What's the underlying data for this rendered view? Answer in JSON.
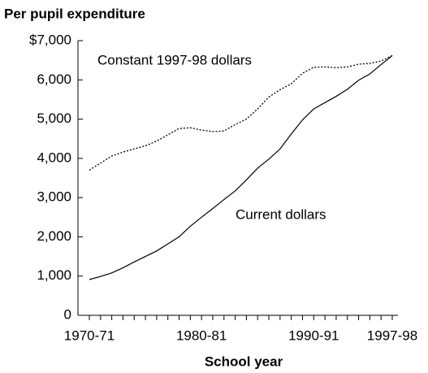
{
  "chart_data": {
    "type": "line",
    "title": "Per pupil expenditure",
    "xlabel": "School year",
    "categories": [
      "1970-71",
      null,
      null,
      null,
      null,
      null,
      null,
      null,
      null,
      null,
      "1980-81",
      null,
      null,
      null,
      null,
      null,
      null,
      null,
      null,
      null,
      "1990-91",
      null,
      null,
      null,
      null,
      null,
      null,
      "1997-98"
    ],
    "series": [
      {
        "name": "Constant 1997-98 dollars",
        "color": "#000000",
        "dash": "dotted",
        "values": [
          3700,
          3880,
          4060,
          4160,
          4240,
          4320,
          4440,
          4600,
          4760,
          4780,
          4720,
          4680,
          4700,
          4860,
          5000,
          5260,
          5560,
          5750,
          5900,
          6170,
          6320,
          6330,
          6310,
          6330,
          6400,
          6420,
          6480,
          6620
        ]
      },
      {
        "name": "Current dollars",
        "color": "#000000",
        "dash": "solid",
        "values": [
          911,
          990,
          1080,
          1210,
          1360,
          1500,
          1640,
          1820,
          2000,
          2270,
          2500,
          2720,
          2950,
          3170,
          3450,
          3750,
          3980,
          4240,
          4620,
          4980,
          5260,
          5420,
          5580,
          5760,
          5990,
          6150,
          6390,
          6620
        ]
      }
    ],
    "ylim": [
      0,
      7000
    ],
    "yticks": [
      0,
      {
        "value": 1000,
        "label": "1,000"
      },
      {
        "value": 2000,
        "label": "2,000"
      },
      {
        "value": 3000,
        "label": "3,000"
      },
      {
        "value": 4000,
        "label": "4,000"
      },
      {
        "value": 5000,
        "label": "5,000"
      },
      {
        "value": 6000,
        "label": "6,000"
      },
      {
        "value": 7000,
        "label": "$7,000"
      }
    ],
    "grid": false
  }
}
